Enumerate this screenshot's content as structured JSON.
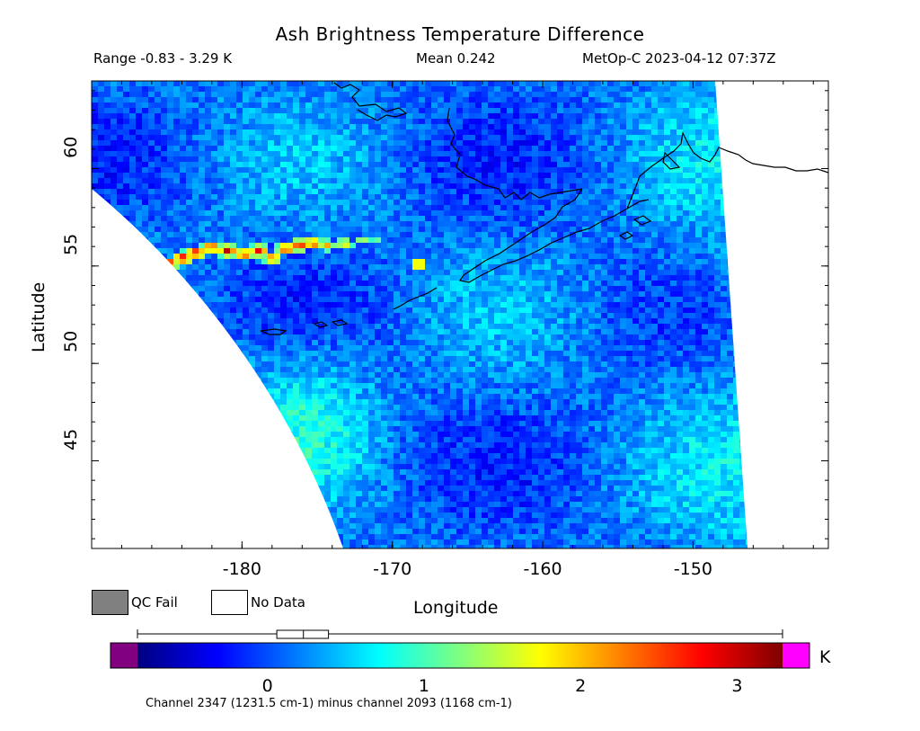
{
  "header": {
    "title": "Ash Brightness Temperature Difference",
    "range": "Range -0.83 - 3.29 K",
    "mean": "Mean 0.242",
    "satellite_time": "MetOp-C 2023-04-12 07:37Z"
  },
  "map": {
    "xlabel": "Longitude",
    "ylabel": "Latitude",
    "lon_range": [
      -190,
      -141
    ],
    "lat_range": [
      40.5,
      64.5
    ],
    "lon_ticks": [
      {
        "value": -180,
        "label": "-180"
      },
      {
        "value": -170,
        "label": "-170"
      },
      {
        "value": -160,
        "label": "-160"
      },
      {
        "value": -150,
        "label": "-150"
      }
    ],
    "lat_ticks": [
      {
        "value": 45,
        "label": "45"
      },
      {
        "value": 50,
        "label": "50"
      },
      {
        "value": 55,
        "label": "55"
      },
      {
        "value": 60,
        "label": "60"
      }
    ],
    "ash_plume_value_max": 3.29,
    "background_value": 0.242
  },
  "legend": {
    "qc_fail_label": "QC Fail",
    "no_data_label": "No Data",
    "qc_fail_color": "#808080",
    "no_data_color": "#ffffff"
  },
  "colorbar": {
    "unit": "K",
    "range": [
      -0.83,
      3.29
    ],
    "ticks": [
      {
        "value": 0,
        "label": "0"
      },
      {
        "value": 1,
        "label": "1"
      },
      {
        "value": 2,
        "label": "2"
      },
      {
        "value": 3,
        "label": "3"
      }
    ],
    "below_color": "#800080",
    "above_color": "#ff00ff",
    "stops": [
      "#00007f",
      "#0000ff",
      "#007fff",
      "#00ffff",
      "#7fff7f",
      "#ffff00",
      "#ff7f00",
      "#ff0000",
      "#7f0000"
    ],
    "histogram_box": {
      "q1": 0.06,
      "median": 0.23,
      "q3": 0.39
    }
  },
  "footer": {
    "channel_note": "Channel 2347 (1231.5 cm-1) minus channel 2093 (1168 cm-1)"
  }
}
